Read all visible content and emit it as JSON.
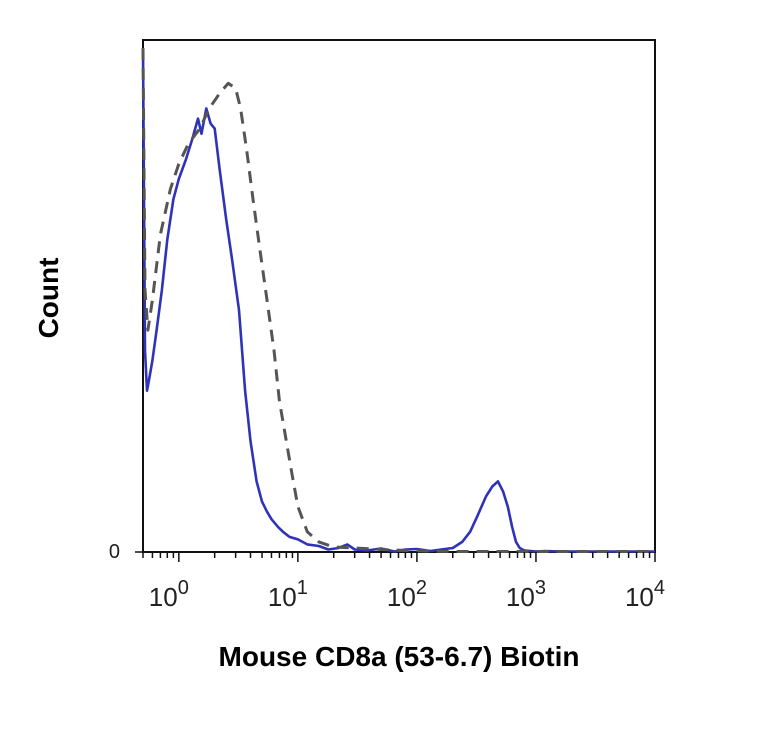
{
  "chart_data": {
    "type": "line",
    "title": "",
    "xlabel": "Mouse CD8a (53-6.7) Biotin",
    "ylabel": "Count",
    "x_scale": "log",
    "xlim": [
      0.5,
      10000
    ],
    "ylim": [
      0,
      100
    ],
    "grid": false,
    "legend": "none",
    "x_ticks": [
      {
        "value": 1,
        "base": "10",
        "exp": "0"
      },
      {
        "value": 10,
        "base": "10",
        "exp": "1"
      },
      {
        "value": 100,
        "base": "10",
        "exp": "2"
      },
      {
        "value": 1000,
        "base": "10",
        "exp": "3"
      },
      {
        "value": 10000,
        "base": "10",
        "exp": "4"
      }
    ],
    "y_ticks": [
      {
        "value": 0,
        "label": "0"
      }
    ],
    "series": [
      {
        "color": "#2e33b8",
        "dash": "solid",
        "x": [
          0.5,
          0.52,
          0.54,
          0.56,
          0.6,
          0.65,
          0.72,
          0.8,
          0.9,
          1.0,
          1.15,
          1.3,
          1.45,
          1.55,
          1.7,
          1.85,
          2.0,
          2.2,
          2.5,
          2.8,
          3.2,
          3.6,
          4.0,
          4.5,
          5.0,
          5.5,
          6.0,
          6.8,
          7.5,
          8.5,
          10,
          12,
          15,
          18,
          22,
          26,
          30,
          38,
          50,
          65,
          80,
          100,
          130,
          160,
          200,
          240,
          280,
          320,
          380,
          430,
          480,
          530,
          580,
          630,
          680,
          730,
          800,
          900,
          1000,
          1200,
          1600,
          2000,
          3000,
          5000,
          7000,
          10000
        ],
        "y": [
          100,
          40,
          32,
          34,
          38,
          44,
          52,
          62,
          70,
          74,
          78,
          82,
          86,
          83,
          88,
          85,
          84,
          76,
          66,
          58,
          48,
          32,
          22,
          14,
          10,
          8,
          6.5,
          5,
          4,
          3,
          2.5,
          1.5,
          1.2,
          0.5,
          0.8,
          1.5,
          0.5,
          0.3,
          0.7,
          0.1,
          0.5,
          0.6,
          0.2,
          0.5,
          0.8,
          2,
          4,
          7,
          11,
          13,
          14,
          12,
          9,
          5,
          2,
          0.8,
          0.3,
          0.2,
          0.1,
          0.2,
          0.1,
          0.1,
          0.1,
          0.1,
          0.1,
          0.1
        ]
      },
      {
        "color": "#555555",
        "dash": "dashed",
        "x": [
          0.5,
          0.52,
          0.55,
          0.6,
          0.7,
          0.85,
          1.0,
          1.2,
          1.5,
          1.8,
          2.2,
          2.6,
          3.0,
          3.3,
          3.7,
          4.2,
          4.8,
          5.5,
          6.3,
          7.0,
          8.0,
          9.0,
          10,
          12,
          15,
          20,
          30,
          50,
          80,
          120,
          200,
          400,
          800,
          2000,
          5000,
          10000
        ],
        "y": [
          100,
          52,
          44,
          50,
          63,
          72,
          77,
          81,
          84,
          88,
          91,
          93,
          92,
          88,
          80,
          70,
          60,
          50,
          40,
          30,
          22,
          15,
          9,
          4,
          2,
          1,
          0.8,
          0.5,
          0.3,
          0.2,
          0.1,
          0.1,
          0.1,
          0.1,
          0.1,
          0.1
        ]
      }
    ]
  }
}
